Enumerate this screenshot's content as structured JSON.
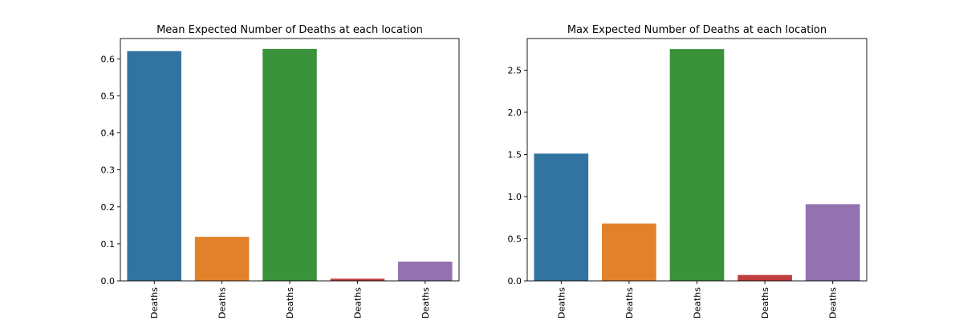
{
  "chart_data": [
    {
      "type": "bar",
      "title": "Mean Expected Number of Deaths at each location",
      "xlabel": "",
      "ylabel": "",
      "categories": [
        "Deaths",
        "Deaths",
        "Deaths",
        "Deaths",
        "Deaths"
      ],
      "values": [
        0.621,
        0.119,
        0.627,
        0.006,
        0.052
      ],
      "colors": [
        "#3274a1",
        "#e1812c",
        "#3a923a",
        "#c03d3e",
        "#9372b2"
      ],
      "ylim": [
        0,
        0.655
      ],
      "yticks": [
        0.0,
        0.1,
        0.2,
        0.3,
        0.4,
        0.5,
        0.6
      ],
      "ytick_labels": [
        "0.0",
        "0.1",
        "0.2",
        "0.3",
        "0.4",
        "0.5",
        "0.6"
      ],
      "grid": false,
      "legend": "none"
    },
    {
      "type": "bar",
      "title": "Max Expected Number of Deaths at each location",
      "xlabel": "",
      "ylabel": "",
      "categories": [
        "Deaths",
        "Deaths",
        "Deaths",
        "Deaths",
        "Deaths"
      ],
      "values": [
        1.51,
        0.68,
        2.75,
        0.07,
        0.91
      ],
      "colors": [
        "#3274a1",
        "#e1812c",
        "#3a923a",
        "#c03d3e",
        "#9372b2"
      ],
      "ylim": [
        0,
        2.875
      ],
      "yticks": [
        0.0,
        0.5,
        1.0,
        1.5,
        2.0,
        2.5
      ],
      "ytick_labels": [
        "0.0",
        "0.5",
        "1.0",
        "1.5",
        "2.0",
        "2.5"
      ],
      "grid": false,
      "legend": "none"
    }
  ]
}
